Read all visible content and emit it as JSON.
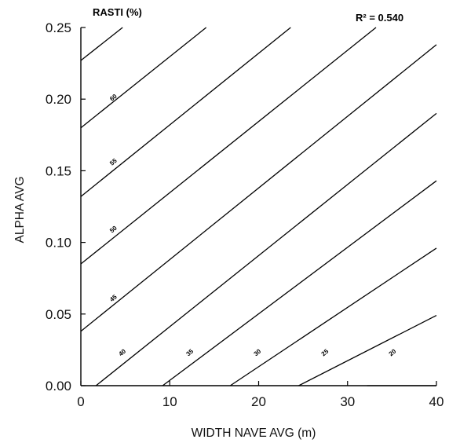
{
  "chart_data": {
    "type": "line",
    "title": "",
    "xlabel": "WIDTH NAVE AVG (m)",
    "ylabel": "ALPHA AVG",
    "xlim": [
      0,
      40
    ],
    "ylim": [
      0,
      0.25
    ],
    "x_ticks": [
      "0",
      "10",
      "20",
      "30",
      "40"
    ],
    "y_ticks": [
      "0.00",
      "0.05",
      "0.10",
      "0.15",
      "0.20",
      "0.25"
    ],
    "grid": false,
    "annotations": {
      "top_left": "RASTI (%)",
      "top_right": "R² = 0.540"
    },
    "contour_lines": [
      {
        "x": [
          0,
          4.7
        ],
        "y": [
          0.227,
          0.25
        ]
      },
      {
        "x": [
          0,
          14.1
        ],
        "y": [
          0.18,
          0.25
        ],
        "label": "60"
      },
      {
        "x": [
          0,
          23.6
        ],
        "y": [
          0.132,
          0.25
        ],
        "label": "55"
      },
      {
        "x": [
          0,
          33.2
        ],
        "y": [
          0.085,
          0.25
        ],
        "label": "50"
      },
      {
        "x": [
          0,
          40
        ],
        "y": [
          0.038,
          0.238
        ],
        "label": "45"
      },
      {
        "x": [
          1.7,
          40
        ],
        "y": [
          0,
          0.19
        ],
        "label": "40"
      },
      {
        "x": [
          9.2,
          40
        ],
        "y": [
          0,
          0.143
        ],
        "label": "35"
      },
      {
        "x": [
          16.8,
          40
        ],
        "y": [
          0,
          0.096
        ],
        "label": "30"
      },
      {
        "x": [
          24.5,
          40
        ],
        "y": [
          0,
          0.049
        ],
        "label": "25"
      },
      {
        "x": [
          32.2,
          40
        ],
        "y": [
          0,
          0.0
        ],
        "label": "20"
      }
    ],
    "contour_label_positions": [
      {
        "x": 3.8,
        "y": 0.2
      },
      {
        "x": 3.8,
        "y": 0.155
      },
      {
        "x": 3.8,
        "y": 0.108
      },
      {
        "x": 3.8,
        "y": 0.06
      },
      {
        "x": 4.8,
        "y": 0.022
      },
      {
        "x": 12.4,
        "y": 0.022
      },
      {
        "x": 20.0,
        "y": 0.022
      },
      {
        "x": 27.6,
        "y": 0.022
      },
      {
        "x": 35.2,
        "y": 0.022
      }
    ]
  }
}
